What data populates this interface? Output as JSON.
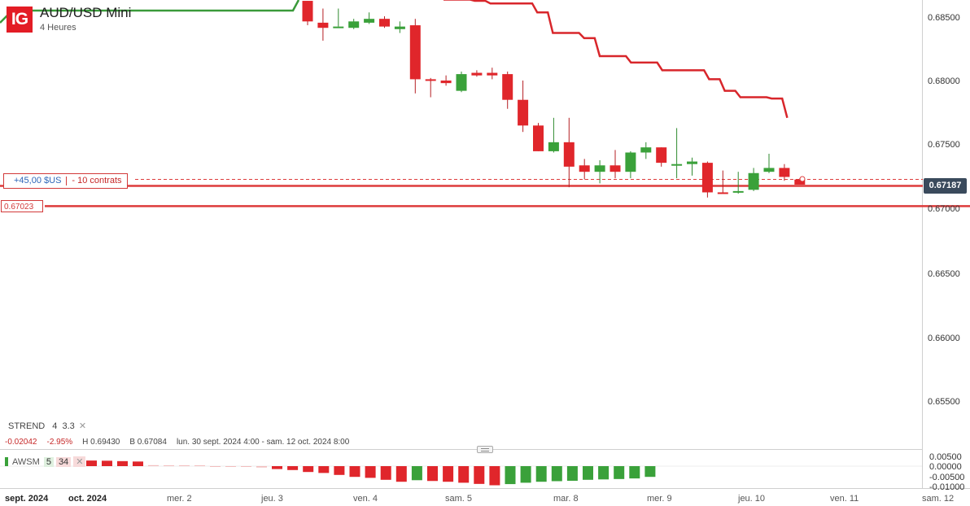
{
  "header": {
    "logo": "IG",
    "instrument": "AUD/USD Mini",
    "timeframe": "4 Heures"
  },
  "y_axis": {
    "ticks": [
      "0.68500",
      "0.68000",
      "0.67500",
      "0.67000",
      "0.66500",
      "0.66000",
      "0.65500"
    ]
  },
  "x_axis": {
    "labels": [
      {
        "text": "sept. 2024",
        "major": true
      },
      {
        "text": "oct. 2024",
        "major": true
      },
      {
        "text": "mer. 2",
        "major": false
      },
      {
        "text": "jeu. 3",
        "major": false
      },
      {
        "text": "ven. 4",
        "major": false
      },
      {
        "text": "sam. 5",
        "major": false
      },
      {
        "text": "mar. 8",
        "major": false
      },
      {
        "text": "mer. 9",
        "major": false
      },
      {
        "text": "jeu. 10",
        "major": false
      },
      {
        "text": "ven. 11",
        "major": false
      },
      {
        "text": "sam. 12",
        "major": false
      }
    ]
  },
  "position": {
    "pnl": "+45,00 $US",
    "size": "- 10 contrats"
  },
  "current_price": "0.67187",
  "level_price": "0.67023",
  "indicator_strend": {
    "name": "STREND",
    "p1": "4",
    "p2": "3.3",
    "close_icon": "close-icon"
  },
  "stats": {
    "change": "-0.02042",
    "change_pct": "-2.95%",
    "high": "H 0.69430",
    "low": "B 0.67084",
    "range": "lun. 30 sept. 2024 4:00 - sam. 12 oct. 2024 8:00"
  },
  "oscillator": {
    "name": "AWSM",
    "p1": "5",
    "p2": "34",
    "close_icon": "close-icon",
    "ticks": [
      "0.00500",
      "0.00000",
      "-0.00500",
      "-0.01000"
    ]
  },
  "colors": {
    "up": "#3aa13a",
    "down": "#e0262b",
    "strend_down": "#d8262b",
    "strend_up": "#3a9a3a",
    "price_tag": "#3a4a5c",
    "logo": "#e31c25"
  },
  "chart_data": {
    "type": "candlestick",
    "ylim": [
      0.653,
      0.6862
    ],
    "candles": [
      {
        "o": 0.6862,
        "h": 0.6862,
        "l": 0.6843,
        "c": 0.6846
      },
      {
        "o": 0.6845,
        "h": 0.6856,
        "l": 0.6831,
        "c": 0.6841
      },
      {
        "o": 0.6842,
        "h": 0.6856,
        "l": 0.6842,
        "c": 0.6842
      },
      {
        "o": 0.6841,
        "h": 0.6848,
        "l": 0.684,
        "c": 0.6846
      },
      {
        "o": 0.6845,
        "h": 0.6853,
        "l": 0.6844,
        "c": 0.6848
      },
      {
        "o": 0.6848,
        "h": 0.685,
        "l": 0.6841,
        "c": 0.6842
      },
      {
        "o": 0.684,
        "h": 0.6846,
        "l": 0.6837,
        "c": 0.6842
      },
      {
        "o": 0.6843,
        "h": 0.6848,
        "l": 0.679,
        "c": 0.6801
      },
      {
        "o": 0.6801,
        "h": 0.6802,
        "l": 0.6787,
        "c": 0.68
      },
      {
        "o": 0.68,
        "h": 0.6804,
        "l": 0.6796,
        "c": 0.6798
      },
      {
        "o": 0.6792,
        "h": 0.6807,
        "l": 0.6791,
        "c": 0.6805
      },
      {
        "o": 0.6806,
        "h": 0.6808,
        "l": 0.6803,
        "c": 0.6804
      },
      {
        "o": 0.6806,
        "h": 0.681,
        "l": 0.6801,
        "c": 0.6804
      },
      {
        "o": 0.6805,
        "h": 0.6807,
        "l": 0.6778,
        "c": 0.6785
      },
      {
        "o": 0.6785,
        "h": 0.68,
        "l": 0.676,
        "c": 0.6765
      },
      {
        "o": 0.6765,
        "h": 0.6767,
        "l": 0.6745,
        "c": 0.6745
      },
      {
        "o": 0.6745,
        "h": 0.6771,
        "l": 0.6744,
        "c": 0.6752
      },
      {
        "o": 0.6752,
        "h": 0.6771,
        "l": 0.6717,
        "c": 0.6733
      },
      {
        "o": 0.6734,
        "h": 0.6739,
        "l": 0.6723,
        "c": 0.6729
      },
      {
        "o": 0.6729,
        "h": 0.6738,
        "l": 0.672,
        "c": 0.6734
      },
      {
        "o": 0.6734,
        "h": 0.6746,
        "l": 0.6724,
        "c": 0.6729
      },
      {
        "o": 0.6729,
        "h": 0.6745,
        "l": 0.6724,
        "c": 0.6744
      },
      {
        "o": 0.6744,
        "h": 0.6752,
        "l": 0.6739,
        "c": 0.6748
      },
      {
        "o": 0.6748,
        "h": 0.6748,
        "l": 0.6733,
        "c": 0.6736
      },
      {
        "o": 0.6735,
        "h": 0.6763,
        "l": 0.6724,
        "c": 0.6735
      },
      {
        "o": 0.6735,
        "h": 0.674,
        "l": 0.6726,
        "c": 0.6737
      },
      {
        "o": 0.6736,
        "h": 0.6737,
        "l": 0.6709,
        "c": 0.6713
      },
      {
        "o": 0.6713,
        "h": 0.673,
        "l": 0.6712,
        "c": 0.6712
      },
      {
        "o": 0.6713,
        "h": 0.6729,
        "l": 0.6712,
        "c": 0.6714
      },
      {
        "o": 0.6715,
        "h": 0.6732,
        "l": 0.6714,
        "c": 0.6728
      },
      {
        "o": 0.6729,
        "h": 0.6743,
        "l": 0.6728,
        "c": 0.6732
      },
      {
        "o": 0.6732,
        "h": 0.6735,
        "l": 0.6722,
        "c": 0.6725
      },
      {
        "o": 0.6723,
        "h": 0.6724,
        "l": 0.6719,
        "c": 0.6719
      }
    ],
    "strend": [
      0.6863,
      0.6863,
      0.6862,
      0.686,
      0.686,
      0.686,
      0.6853,
      0.6837,
      0.6837,
      0.6833,
      0.6819,
      0.6819,
      0.6814,
      0.6814,
      0.6808,
      0.6808,
      0.6808,
      0.6801,
      0.6792,
      0.6787,
      0.6787,
      0.6786,
      0.6771
    ],
    "awesome_oscillator": [
      -0.0015,
      -0.002,
      -0.003,
      -0.0035,
      -0.0045,
      -0.0055,
      -0.006,
      -0.007,
      -0.008,
      -0.0072,
      -0.0076,
      -0.008,
      -0.0085,
      -0.0091,
      -0.0098,
      -0.0092,
      -0.0085,
      -0.008,
      -0.0077,
      -0.0075,
      -0.007,
      -0.0068,
      -0.0066,
      -0.0063,
      -0.0055
    ]
  }
}
